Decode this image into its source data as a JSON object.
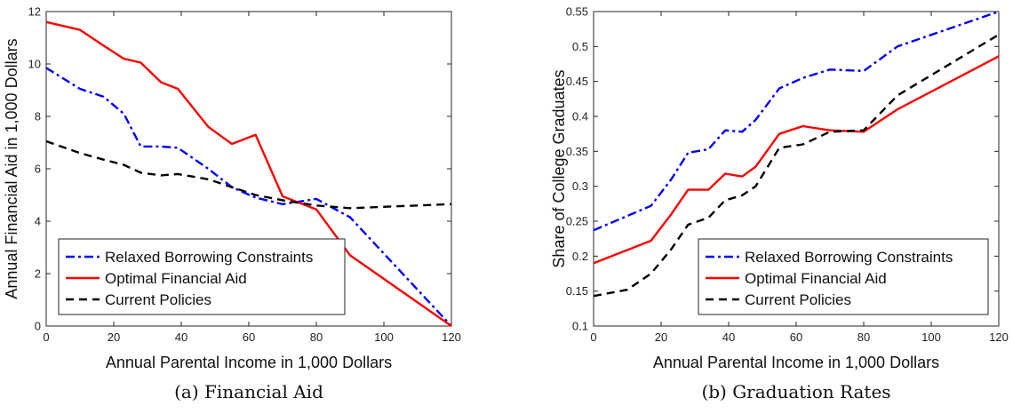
{
  "chart_data": [
    {
      "type": "line",
      "caption": "(a) Financial Aid",
      "xlabel": "Annual Parental Income in 1,000 Dollars",
      "ylabel": "Annual Financial Aid in 1,000 Dollars",
      "xlim": [
        0,
        120
      ],
      "ylim": [
        0,
        12
      ],
      "xticks": [
        0,
        20,
        40,
        60,
        80,
        100,
        120
      ],
      "yticks": [
        0,
        2,
        4,
        6,
        8,
        10,
        12
      ],
      "ytick_labels": [
        "0",
        "2",
        "4",
        "6",
        "8",
        "10",
        "12"
      ],
      "grid": false,
      "legend_position": "bottom-left",
      "series": [
        {
          "name": "Relaxed Borrowing Constraints",
          "style": "dash-dot",
          "color": "#0000ff",
          "x": [
            0,
            10,
            17,
            23,
            28,
            34,
            39,
            48,
            55,
            62,
            70,
            80,
            90,
            120
          ],
          "y": [
            9.85,
            9.05,
            8.75,
            8.1,
            6.85,
            6.85,
            6.8,
            6.0,
            5.3,
            4.9,
            4.65,
            4.85,
            4.15,
            0.0
          ]
        },
        {
          "name": "Optimal Financial Aid",
          "style": "solid",
          "color": "#ff0000",
          "x": [
            0,
            10,
            17,
            23,
            28,
            34,
            39,
            48,
            55,
            62,
            70,
            80,
            90,
            120
          ],
          "y": [
            11.6,
            11.3,
            10.7,
            10.2,
            10.05,
            9.3,
            9.05,
            7.6,
            6.95,
            7.3,
            4.95,
            4.45,
            2.7,
            0.0
          ]
        },
        {
          "name": "Current Policies",
          "style": "dashed",
          "color": "#000000",
          "x": [
            0,
            10,
            17,
            23,
            28,
            34,
            39,
            48,
            55,
            62,
            70,
            80,
            90,
            120
          ],
          "y": [
            7.05,
            6.6,
            6.35,
            6.15,
            5.85,
            5.75,
            5.8,
            5.6,
            5.3,
            5.0,
            4.8,
            4.6,
            4.5,
            4.65
          ]
        }
      ]
    },
    {
      "type": "line",
      "caption": "(b) Graduation Rates",
      "xlabel": "Annual Parental Income in 1,000 Dollars",
      "ylabel": "Share of College Graduates",
      "xlim": [
        0,
        120
      ],
      "ylim": [
        0.1,
        0.55
      ],
      "xticks": [
        0,
        20,
        40,
        60,
        80,
        100,
        120
      ],
      "yticks": [
        0.1,
        0.15,
        0.2,
        0.25,
        0.3,
        0.35,
        0.4,
        0.45,
        0.5,
        0.55
      ],
      "ytick_labels": [
        "0.1",
        "0.15",
        "0.2",
        "0.25",
        "0.3",
        "0.35",
        "0.4",
        "0.45",
        "0.5",
        "0.55"
      ],
      "grid": false,
      "legend_position": "bottom-left",
      "series": [
        {
          "name": "Relaxed Borrowing Constraints",
          "style": "dash-dot",
          "color": "#0000ff",
          "x": [
            0,
            17,
            23,
            28,
            34,
            39,
            44,
            48,
            55,
            62,
            70,
            80,
            90,
            120
          ],
          "y": [
            0.237,
            0.272,
            0.31,
            0.348,
            0.353,
            0.38,
            0.378,
            0.395,
            0.44,
            0.455,
            0.467,
            0.465,
            0.5,
            0.55
          ]
        },
        {
          "name": "Optimal Financial Aid",
          "style": "solid",
          "color": "#ff0000",
          "x": [
            0,
            17,
            23,
            28,
            34,
            39,
            44,
            48,
            55,
            62,
            70,
            80,
            90,
            120
          ],
          "y": [
            0.19,
            0.222,
            0.26,
            0.295,
            0.295,
            0.318,
            0.314,
            0.328,
            0.375,
            0.386,
            0.38,
            0.378,
            0.41,
            0.486
          ]
        },
        {
          "name": "Current Policies",
          "style": "dashed",
          "color": "#000000",
          "x": [
            0,
            10,
            17,
            23,
            28,
            34,
            39,
            44,
            48,
            55,
            62,
            70,
            80,
            90,
            120
          ],
          "y": [
            0.143,
            0.152,
            0.175,
            0.21,
            0.245,
            0.255,
            0.28,
            0.287,
            0.3,
            0.355,
            0.36,
            0.378,
            0.38,
            0.43,
            0.517
          ]
        }
      ]
    }
  ]
}
